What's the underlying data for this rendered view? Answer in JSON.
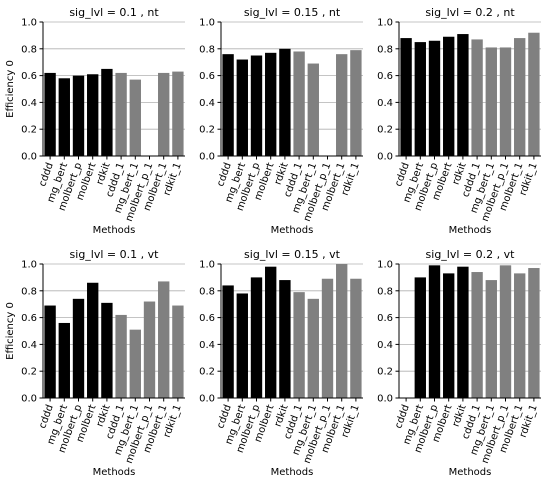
{
  "chart_data": [
    {
      "type": "bar",
      "title": "sig_lvl = 0.1 , nt",
      "xlabel": "Methods",
      "ylabel": "Efficiency 0",
      "ylim": [
        0,
        1.0
      ],
      "yticks": [
        0.0,
        0.2,
        0.4,
        0.6,
        0.8,
        1.0
      ],
      "grid": "y",
      "categories": [
        "cddd",
        "mg_bert",
        "molbert_p",
        "molbert",
        "rdkit",
        "cddd_1",
        "mg_bert_1",
        "molbert_p_1",
        "molbert_1",
        "rdkit_1"
      ],
      "values": [
        0.62,
        0.58,
        0.6,
        0.61,
        0.65,
        0.62,
        0.57,
        0.0,
        0.62,
        0.63
      ],
      "colors": [
        "#000000",
        "#000000",
        "#000000",
        "#000000",
        "#000000",
        "#808080",
        "#808080",
        "#808080",
        "#808080",
        "#808080"
      ]
    },
    {
      "type": "bar",
      "title": "sig_lvl = 0.15 , nt",
      "xlabel": "Methods",
      "ylabel": "",
      "ylim": [
        0,
        1.0
      ],
      "yticks": [
        0.0,
        0.2,
        0.4,
        0.6,
        0.8,
        1.0
      ],
      "grid": "y",
      "categories": [
        "cddd",
        "mg_bert",
        "molbert_p",
        "molbert",
        "rdkit",
        "cddd_1",
        "mg_bert_1",
        "molbert_p_1",
        "molbert_1",
        "rdkit_1"
      ],
      "values": [
        0.76,
        0.72,
        0.75,
        0.77,
        0.8,
        0.78,
        0.69,
        0.0,
        0.76,
        0.79
      ],
      "colors": [
        "#000000",
        "#000000",
        "#000000",
        "#000000",
        "#000000",
        "#808080",
        "#808080",
        "#808080",
        "#808080",
        "#808080"
      ]
    },
    {
      "type": "bar",
      "title": "sig_lvl = 0.2 , nt",
      "xlabel": "Methods",
      "ylabel": "",
      "ylim": [
        0,
        1.0
      ],
      "yticks": [
        0.0,
        0.2,
        0.4,
        0.6,
        0.8,
        1.0
      ],
      "grid": "y",
      "categories": [
        "cddd",
        "mg_bert",
        "molbert_p",
        "molbert",
        "rdkit",
        "cddd_1",
        "mg_bert_1",
        "molbert_p_1",
        "molbert_1",
        "rdkit_1"
      ],
      "values": [
        0.88,
        0.85,
        0.86,
        0.89,
        0.91,
        0.87,
        0.81,
        0.81,
        0.88,
        0.92
      ],
      "colors": [
        "#000000",
        "#000000",
        "#000000",
        "#000000",
        "#000000",
        "#808080",
        "#808080",
        "#808080",
        "#808080",
        "#808080"
      ]
    },
    {
      "type": "bar",
      "title": "sig_lvl = 0.1 , vt",
      "xlabel": "Methods",
      "ylabel": "Efficiency 0",
      "ylim": [
        0,
        1.0
      ],
      "yticks": [
        0.0,
        0.2,
        0.4,
        0.6,
        0.8,
        1.0
      ],
      "grid": "y",
      "categories": [
        "cddd",
        "mg_bert",
        "molbert_p",
        "molbert",
        "rdkit",
        "cddd_1",
        "mg_bert_1",
        "molbert_p_1",
        "molbert_1",
        "rdkit_1"
      ],
      "values": [
        0.69,
        0.56,
        0.74,
        0.86,
        0.71,
        0.62,
        0.51,
        0.72,
        0.87,
        0.69
      ],
      "colors": [
        "#000000",
        "#000000",
        "#000000",
        "#000000",
        "#000000",
        "#808080",
        "#808080",
        "#808080",
        "#808080",
        "#808080"
      ]
    },
    {
      "type": "bar",
      "title": "sig_lvl = 0.15 , vt",
      "xlabel": "Methods",
      "ylabel": "",
      "ylim": [
        0,
        1.0
      ],
      "yticks": [
        0.0,
        0.2,
        0.4,
        0.6,
        0.8,
        1.0
      ],
      "grid": "y",
      "categories": [
        "cddd",
        "mg_bert",
        "molbert_p",
        "molbert",
        "rdkit",
        "cddd_1",
        "mg_bert_1",
        "molbert_p_1",
        "molbert_1",
        "rdkit_1"
      ],
      "values": [
        0.84,
        0.78,
        0.9,
        0.98,
        0.88,
        0.79,
        0.74,
        0.89,
        1.0,
        0.89
      ],
      "colors": [
        "#000000",
        "#000000",
        "#000000",
        "#000000",
        "#000000",
        "#808080",
        "#808080",
        "#808080",
        "#808080",
        "#808080"
      ]
    },
    {
      "type": "bar",
      "title": "sig_lvl = 0.2 , vt",
      "xlabel": "Methods",
      "ylabel": "",
      "ylim": [
        0,
        1.0
      ],
      "yticks": [
        0.0,
        0.2,
        0.4,
        0.6,
        0.8,
        1.0
      ],
      "grid": "y",
      "categories": [
        "cddd",
        "mg_bert",
        "molbert_p",
        "molbert",
        "rdkit",
        "cddd_1",
        "mg_bert_1",
        "molbert_p_1",
        "molbert_1",
        "rdkit_1"
      ],
      "values": [
        0.0,
        0.9,
        0.99,
        0.93,
        0.98,
        0.94,
        0.88,
        0.99,
        0.93,
        0.97
      ],
      "colors": [
        "#000000",
        "#000000",
        "#000000",
        "#000000",
        "#000000",
        "#808080",
        "#808080",
        "#808080",
        "#808080",
        "#808080"
      ]
    }
  ]
}
